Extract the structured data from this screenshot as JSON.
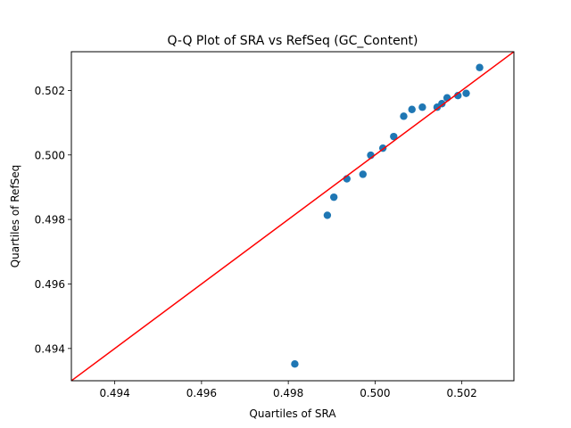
{
  "chart_data": {
    "type": "scatter",
    "title": "Q-Q Plot of SRA vs RefSeq (GC_Content)",
    "xlabel": "Quartiles of SRA",
    "ylabel": "Quartiles of RefSeq",
    "xlim": [
      0.493,
      0.5032
    ],
    "ylim": [
      0.493,
      0.5032
    ],
    "x_ticks": [
      0.494,
      0.496,
      0.498,
      0.5,
      0.502
    ],
    "y_ticks": [
      0.494,
      0.496,
      0.498,
      0.5,
      0.502
    ],
    "x_tick_labels": [
      "0.494",
      "0.496",
      "0.498",
      "0.500",
      "0.502"
    ],
    "y_tick_labels": [
      "0.494",
      "0.496",
      "0.498",
      "0.500",
      "0.502"
    ],
    "grid": false,
    "marker_color": "#1f77b4",
    "reference_line": {
      "from": [
        0.493,
        0.493
      ],
      "to": [
        0.5032,
        0.5032
      ],
      "color": "#ff0000"
    },
    "points": [
      {
        "x": 0.49815,
        "y": 0.49352
      },
      {
        "x": 0.4989,
        "y": 0.49813
      },
      {
        "x": 0.49905,
        "y": 0.49869
      },
      {
        "x": 0.49935,
        "y": 0.49926
      },
      {
        "x": 0.49972,
        "y": 0.4994
      },
      {
        "x": 0.4999,
        "y": 0.49999
      },
      {
        "x": 0.50018,
        "y": 0.50021
      },
      {
        "x": 0.50043,
        "y": 0.50057
      },
      {
        "x": 0.50066,
        "y": 0.5012
      },
      {
        "x": 0.50085,
        "y": 0.50141
      },
      {
        "x": 0.50109,
        "y": 0.50148
      },
      {
        "x": 0.50143,
        "y": 0.50148
      },
      {
        "x": 0.50154,
        "y": 0.50159
      },
      {
        "x": 0.50166,
        "y": 0.50177
      },
      {
        "x": 0.50191,
        "y": 0.50184
      },
      {
        "x": 0.5021,
        "y": 0.50191
      },
      {
        "x": 0.50241,
        "y": 0.50271
      }
    ]
  }
}
